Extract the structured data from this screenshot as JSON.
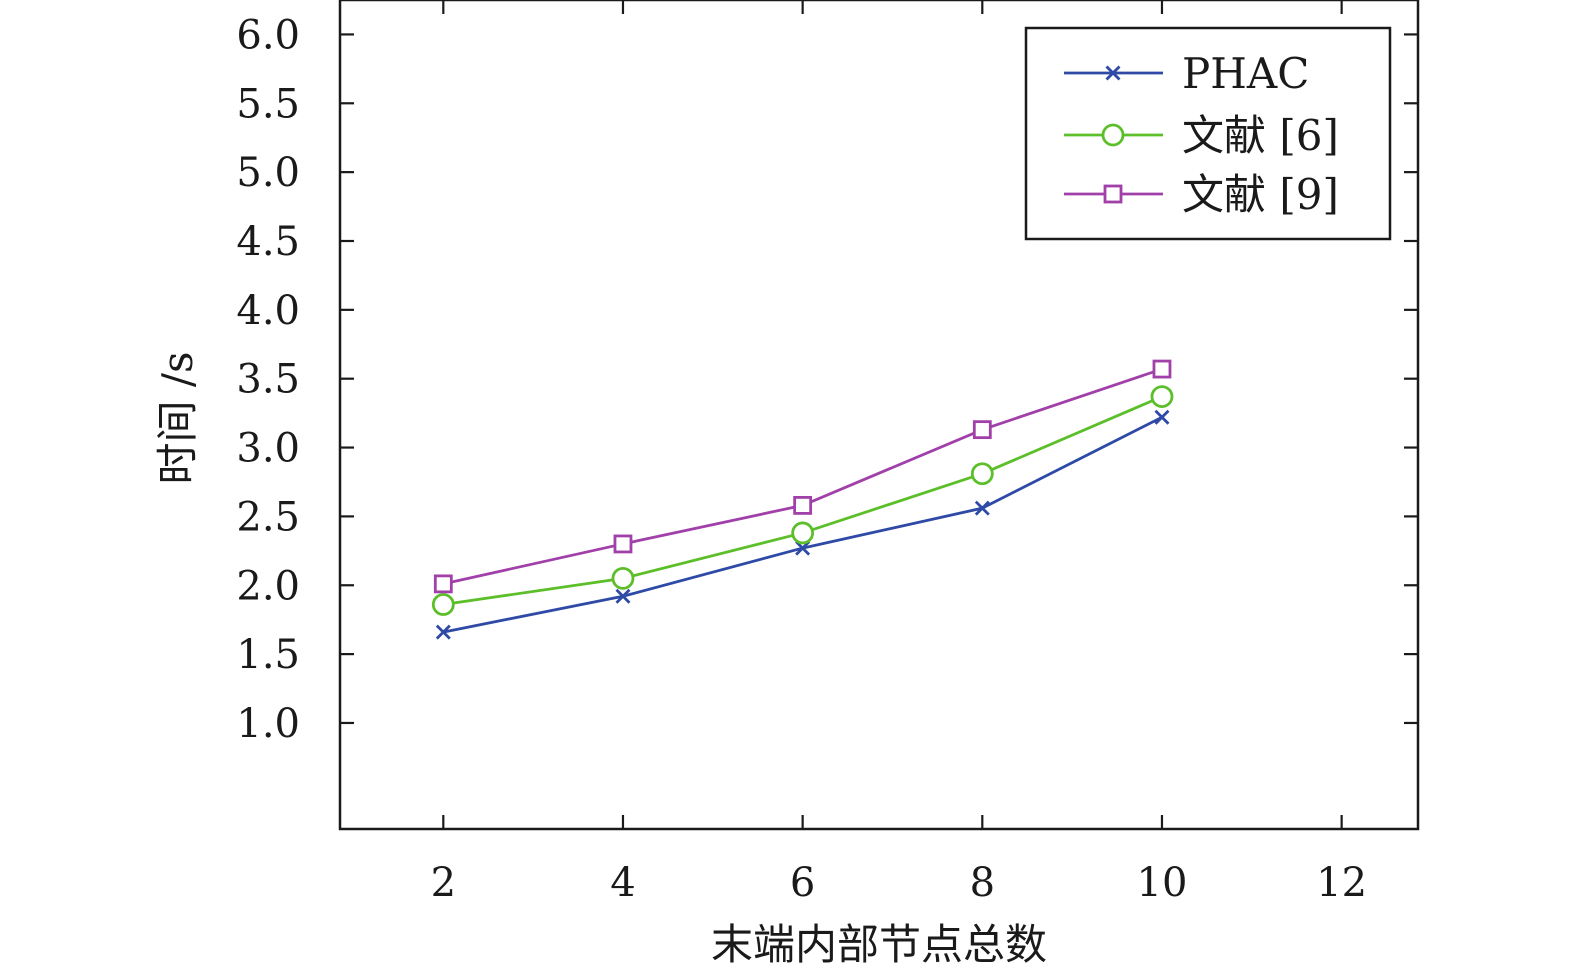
{
  "chart_data": {
    "type": "line",
    "title": "",
    "xlabel": "末端内部节点总数",
    "ylabel": "时间 /s",
    "x": [
      2,
      4,
      6,
      8,
      10
    ],
    "xticks": [
      2,
      4,
      6,
      8,
      10,
      12
    ],
    "xtick_labels": [
      "2",
      "4",
      "6",
      "8",
      "10",
      "12"
    ],
    "yticks": [
      1.0,
      1.5,
      2.0,
      2.5,
      3.0,
      3.5,
      4.0,
      4.5,
      5.0,
      5.5,
      6.0
    ],
    "ytick_labels": [
      "1.0",
      "1.5",
      "2.0",
      "2.5",
      "3.0",
      "3.5",
      "4.0",
      "4.5",
      "5.0",
      "5.5",
      "6.0"
    ],
    "xlim": [
      0.85,
      12.85
    ],
    "ylim": [
      0.23,
      6.25
    ],
    "grid": false,
    "legend_position": "top-right",
    "series": [
      {
        "name": "PHAC",
        "marker": "x",
        "color": "#2e4aa6",
        "values": [
          1.66,
          1.92,
          2.27,
          2.56,
          3.22
        ]
      },
      {
        "name": "文献 [6]",
        "marker": "circle",
        "color": "#5cbf2a",
        "values": [
          1.86,
          2.05,
          2.38,
          2.81,
          3.37
        ]
      },
      {
        "name": "文献 [9]",
        "marker": "square",
        "color": "#a040a8",
        "values": [
          2.01,
          2.3,
          2.58,
          3.13,
          3.57
        ]
      }
    ]
  }
}
